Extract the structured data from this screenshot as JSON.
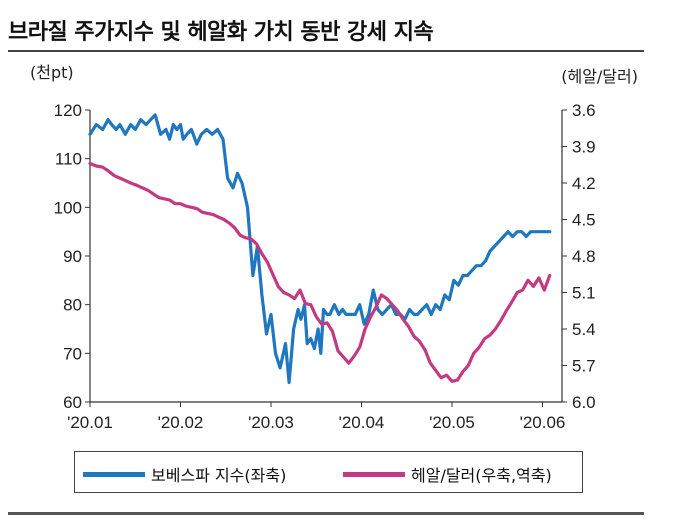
{
  "chart_data": {
    "type": "line",
    "title": "브라질 주가지수 및 헤알화 가치 동반 강세 지속",
    "left_unit": "(천pt)",
    "right_unit": "(헤알/달러)",
    "x_ticks": [
      "'20.01",
      "'20.02",
      "'20.03",
      "'20.04",
      "'20.05",
      "'20.06"
    ],
    "x_range": [
      0,
      5.15
    ],
    "y_left_ticks": [
      "120",
      "110",
      "100",
      "90",
      "80",
      "70",
      "60"
    ],
    "y_left_range": [
      60,
      120
    ],
    "y_right_ticks": [
      "3.6",
      "3.9",
      "4.2",
      "4.5",
      "4.8",
      "5.1",
      "5.4",
      "5.7",
      "6.0"
    ],
    "y_right_range": [
      3.6,
      6.0
    ],
    "y_right_inverted": true,
    "series": [
      {
        "name": "보베스파 지수(좌축)",
        "axis": "left",
        "color": "#1f77c0",
        "x": [
          0,
          0.07,
          0.14,
          0.2,
          0.24,
          0.29,
          0.33,
          0.39,
          0.45,
          0.5,
          0.56,
          0.62,
          0.67,
          0.72,
          0.78,
          0.84,
          0.88,
          0.92,
          0.96,
          1.0,
          1.03,
          1.07,
          1.12,
          1.18,
          1.23,
          1.29,
          1.35,
          1.41,
          1.47,
          1.52,
          1.58,
          1.63,
          1.68,
          1.74,
          1.8,
          1.85,
          1.9,
          1.95,
          2.0,
          2.05,
          2.1,
          2.16,
          2.2,
          2.25,
          2.3,
          2.33,
          2.37,
          2.4,
          2.44,
          2.48,
          2.52,
          2.55,
          2.58,
          2.62,
          2.65,
          2.7,
          2.75,
          2.79,
          2.83,
          2.88,
          2.93,
          2.98,
          3.03,
          3.08,
          3.13,
          3.18,
          3.23,
          3.28,
          3.33,
          3.38,
          3.43,
          3.48,
          3.53,
          3.58,
          3.62,
          3.67,
          3.72,
          3.77,
          3.82,
          3.87,
          3.92,
          3.97,
          4.02,
          4.07,
          4.12,
          4.17,
          4.22,
          4.27,
          4.32,
          4.37,
          4.42,
          4.47,
          4.52,
          4.57,
          4.62,
          4.67,
          4.72,
          4.77,
          4.82,
          4.87,
          4.92,
          4.97,
          5.02,
          5.08
        ],
        "values": [
          115,
          117,
          116,
          118,
          117,
          116,
          117,
          115,
          117,
          116,
          118,
          117,
          118,
          119,
          115,
          116,
          114,
          117,
          116,
          117,
          114,
          115,
          116,
          113,
          115,
          116,
          115,
          116,
          114,
          106,
          104,
          107,
          105,
          100,
          86,
          92,
          82,
          74,
          78,
          70,
          67,
          72,
          64,
          75,
          79,
          77,
          80,
          72,
          73,
          71,
          75,
          70,
          79,
          78,
          78,
          80,
          78,
          79,
          78,
          78,
          78,
          80,
          76,
          78,
          83,
          79,
          78,
          79,
          80,
          78,
          78,
          77,
          79,
          78,
          78,
          79,
          80,
          78,
          80,
          79,
          82,
          81,
          85,
          84,
          86,
          86,
          87,
          88,
          88,
          89,
          91,
          92,
          93,
          94,
          95,
          94,
          95,
          95,
          94,
          95,
          95,
          95,
          95,
          95
        ]
      },
      {
        "name": "헤알/달러(우축,역축)",
        "axis": "right",
        "color": "#c43a82",
        "x": [
          0,
          0.07,
          0.14,
          0.2,
          0.27,
          0.33,
          0.39,
          0.45,
          0.52,
          0.58,
          0.64,
          0.7,
          0.76,
          0.82,
          0.88,
          0.94,
          1.0,
          1.06,
          1.12,
          1.18,
          1.24,
          1.3,
          1.36,
          1.42,
          1.48,
          1.54,
          1.6,
          1.66,
          1.72,
          1.78,
          1.84,
          1.9,
          1.96,
          2.02,
          2.08,
          2.14,
          2.2,
          2.26,
          2.32,
          2.38,
          2.44,
          2.5,
          2.56,
          2.62,
          2.68,
          2.74,
          2.8,
          2.86,
          2.92,
          2.98,
          3.04,
          3.1,
          3.16,
          3.22,
          3.28,
          3.34,
          3.4,
          3.46,
          3.52,
          3.58,
          3.64,
          3.7,
          3.76,
          3.82,
          3.88,
          3.94,
          4.0,
          4.06,
          4.12,
          4.18,
          4.24,
          4.3,
          4.36,
          4.42,
          4.48,
          4.54,
          4.6,
          4.66,
          4.72,
          4.78,
          4.84,
          4.9,
          4.96,
          5.02,
          5.08
        ],
        "values": [
          4.04,
          4.06,
          4.07,
          4.1,
          4.14,
          4.16,
          4.18,
          4.2,
          4.22,
          4.24,
          4.26,
          4.29,
          4.32,
          4.33,
          4.34,
          4.37,
          4.37,
          4.39,
          4.4,
          4.41,
          4.44,
          4.45,
          4.46,
          4.48,
          4.5,
          4.53,
          4.57,
          4.63,
          4.65,
          4.66,
          4.7,
          4.78,
          4.85,
          4.95,
          5.05,
          5.1,
          5.12,
          5.15,
          5.08,
          5.19,
          5.2,
          5.3,
          5.36,
          5.35,
          5.42,
          5.58,
          5.63,
          5.68,
          5.62,
          5.55,
          5.4,
          5.3,
          5.22,
          5.12,
          5.15,
          5.2,
          5.25,
          5.32,
          5.38,
          5.46,
          5.5,
          5.57,
          5.68,
          5.74,
          5.8,
          5.78,
          5.83,
          5.82,
          5.75,
          5.7,
          5.6,
          5.55,
          5.48,
          5.45,
          5.4,
          5.33,
          5.25,
          5.18,
          5.1,
          5.08,
          5.0,
          5.05,
          4.98,
          5.08,
          4.96
        ]
      }
    ],
    "legend_position": "bottom",
    "grid": false
  }
}
